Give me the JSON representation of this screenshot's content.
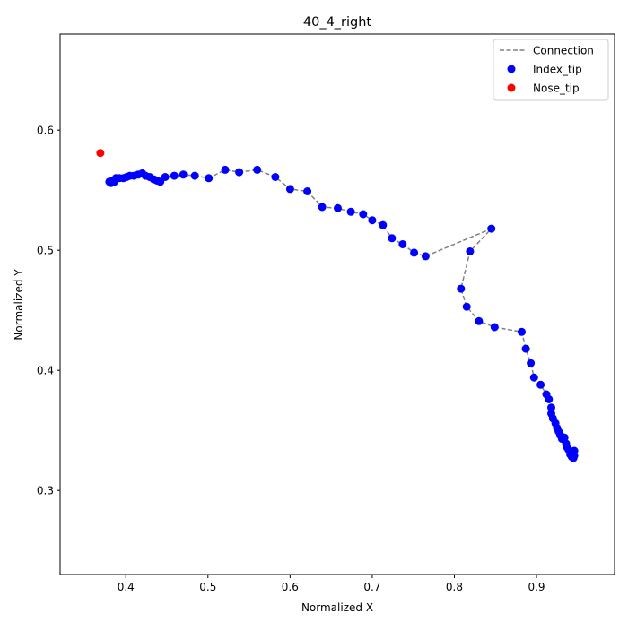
{
  "chart_data": {
    "type": "scatter",
    "title": "40_4_right",
    "xlabel": "Normalized X",
    "ylabel": "Normalized Y",
    "xlim": [
      0.32,
      0.995
    ],
    "ylim": [
      0.23,
      0.68
    ],
    "x_ticks": [
      0.4,
      0.5,
      0.6,
      0.7,
      0.8,
      0.9
    ],
    "y_ticks": [
      0.3,
      0.4,
      0.5,
      0.6
    ],
    "x_tick_labels": [
      "0.4",
      "0.5",
      "0.6",
      "0.7",
      "0.8",
      "0.9"
    ],
    "y_tick_labels": [
      "0.3",
      "0.4",
      "0.5",
      "0.6"
    ],
    "grid": false,
    "legend_position": "upper right",
    "legend": [
      {
        "label": "Connection",
        "kind": "dashed-line",
        "color": "#808080"
      },
      {
        "label": "Index_tip",
        "kind": "marker",
        "color": "#0000ff"
      },
      {
        "label": "Nose_tip",
        "kind": "marker",
        "color": "#ff0000"
      }
    ],
    "series": [
      {
        "name": "Index_tip",
        "color": "#0000ff",
        "connected": true,
        "connection_color": "#808080",
        "points": [
          [
            0.38,
            0.557
          ],
          [
            0.382,
            0.556
          ],
          [
            0.384,
            0.558
          ],
          [
            0.386,
            0.557
          ],
          [
            0.388,
            0.56
          ],
          [
            0.392,
            0.56
          ],
          [
            0.397,
            0.56
          ],
          [
            0.401,
            0.561
          ],
          [
            0.405,
            0.562
          ],
          [
            0.41,
            0.562
          ],
          [
            0.415,
            0.563
          ],
          [
            0.42,
            0.564
          ],
          [
            0.424,
            0.562
          ],
          [
            0.429,
            0.561
          ],
          [
            0.434,
            0.559
          ],
          [
            0.438,
            0.558
          ],
          [
            0.442,
            0.557
          ],
          [
            0.448,
            0.561
          ],
          [
            0.459,
            0.562
          ],
          [
            0.47,
            0.563
          ],
          [
            0.484,
            0.562
          ],
          [
            0.501,
            0.56
          ],
          [
            0.521,
            0.567
          ],
          [
            0.538,
            0.565
          ],
          [
            0.56,
            0.567
          ],
          [
            0.582,
            0.561
          ],
          [
            0.6,
            0.551
          ],
          [
            0.621,
            0.549
          ],
          [
            0.639,
            0.536
          ],
          [
            0.658,
            0.535
          ],
          [
            0.674,
            0.532
          ],
          [
            0.689,
            0.53
          ],
          [
            0.7,
            0.525
          ],
          [
            0.713,
            0.521
          ],
          [
            0.724,
            0.51
          ],
          [
            0.737,
            0.505
          ],
          [
            0.751,
            0.498
          ],
          [
            0.765,
            0.495
          ],
          [
            0.845,
            0.518
          ],
          [
            0.819,
            0.499
          ],
          [
            0.808,
            0.468
          ],
          [
            0.815,
            0.453
          ],
          [
            0.83,
            0.441
          ],
          [
            0.849,
            0.436
          ],
          [
            0.882,
            0.432
          ],
          [
            0.887,
            0.418
          ],
          [
            0.893,
            0.406
          ],
          [
            0.897,
            0.394
          ],
          [
            0.905,
            0.388
          ],
          [
            0.912,
            0.38
          ],
          [
            0.915,
            0.376
          ],
          [
            0.918,
            0.369
          ],
          [
            0.918,
            0.364
          ],
          [
            0.92,
            0.36
          ],
          [
            0.923,
            0.356
          ],
          [
            0.925,
            0.352
          ],
          [
            0.927,
            0.349
          ],
          [
            0.929,
            0.346
          ],
          [
            0.931,
            0.343
          ],
          [
            0.934,
            0.344
          ],
          [
            0.936,
            0.339
          ],
          [
            0.937,
            0.336
          ],
          [
            0.939,
            0.334
          ],
          [
            0.941,
            0.33
          ],
          [
            0.943,
            0.328
          ],
          [
            0.945,
            0.327
          ],
          [
            0.946,
            0.329
          ],
          [
            0.946,
            0.333
          ]
        ]
      },
      {
        "name": "Nose_tip",
        "color": "#ff0000",
        "connected": false,
        "points": [
          [
            0.369,
            0.581
          ]
        ]
      }
    ]
  }
}
